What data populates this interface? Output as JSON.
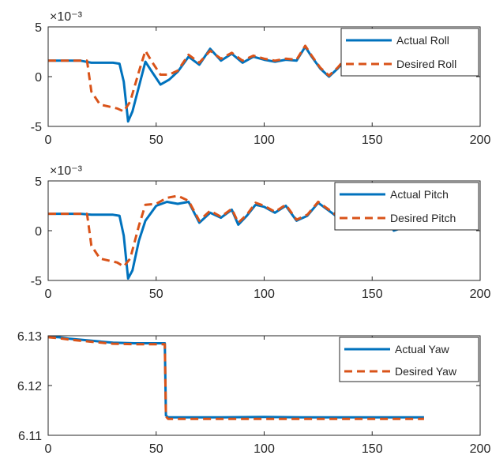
{
  "chart_data": [
    {
      "type": "line",
      "title": "",
      "xlabel": "",
      "ylabel": "",
      "y_exponent_label": "×10⁻³",
      "xlim": [
        0,
        200
      ],
      "ylim": [
        -5,
        5
      ],
      "xticks": [
        0,
        50,
        100,
        150,
        200
      ],
      "yticks": [
        -5,
        0,
        5
      ],
      "legend_position": "top-right",
      "grid": false,
      "series": [
        {
          "name": "Actual Roll",
          "color": "#0072BD",
          "style": "solid",
          "x": [
            0,
            5,
            10,
            15,
            20,
            25,
            30,
            33,
            35,
            37,
            39,
            42,
            45,
            48,
            52,
            56,
            60,
            65,
            70,
            75,
            80,
            85,
            90,
            95,
            100,
            105,
            110,
            115,
            119,
            122,
            126,
            130,
            134,
            138,
            142,
            146,
            150,
            155,
            160,
            165,
            170,
            174
          ],
          "y": [
            1.6,
            1.6,
            1.6,
            1.6,
            1.4,
            1.4,
            1.4,
            1.3,
            -0.5,
            -4.5,
            -3.5,
            -1.0,
            1.5,
            0.5,
            -0.8,
            -0.3,
            0.5,
            2.0,
            1.2,
            2.8,
            1.6,
            2.3,
            1.4,
            2.0,
            1.7,
            1.5,
            1.7,
            1.6,
            3.0,
            2.0,
            0.8,
            0.0,
            0.8,
            1.8,
            2.2,
            1.8,
            1.9,
            2.2,
            1.5,
            2.3,
            1.8,
            2.0
          ]
        },
        {
          "name": "Desired Roll",
          "color": "#D95319",
          "style": "dashed",
          "x": [
            0,
            5,
            10,
            15,
            18,
            20,
            24,
            28,
            32,
            35,
            38,
            42,
            45,
            48,
            52,
            56,
            60,
            65,
            70,
            75,
            80,
            85,
            90,
            95,
            100,
            105,
            110,
            115,
            119,
            122,
            126,
            130,
            134,
            138,
            142,
            146,
            150,
            155,
            160,
            165,
            170,
            174
          ],
          "y": [
            1.6,
            1.6,
            1.6,
            1.6,
            1.6,
            -1.5,
            -2.8,
            -3.0,
            -3.2,
            -3.5,
            -2.5,
            0.5,
            2.6,
            1.5,
            0.2,
            0.2,
            0.6,
            2.2,
            1.4,
            2.6,
            1.8,
            2.4,
            1.6,
            2.1,
            1.8,
            1.6,
            1.8,
            1.7,
            3.1,
            2.1,
            0.9,
            0.1,
            0.9,
            1.9,
            2.3,
            1.9,
            2.0,
            2.3,
            1.6,
            2.4,
            1.9,
            2.1
          ]
        }
      ]
    },
    {
      "type": "line",
      "title": "",
      "xlabel": "",
      "ylabel": "",
      "y_exponent_label": "×10⁻³",
      "xlim": [
        0,
        200
      ],
      "ylim": [
        -5,
        5
      ],
      "xticks": [
        0,
        50,
        100,
        150,
        200
      ],
      "yticks": [
        -5,
        0,
        5
      ],
      "legend_position": "top-right",
      "grid": false,
      "series": [
        {
          "name": "Actual Pitch",
          "color": "#0072BD",
          "style": "solid",
          "x": [
            0,
            5,
            10,
            15,
            20,
            25,
            30,
            33,
            35,
            37,
            39,
            42,
            45,
            50,
            55,
            60,
            65,
            70,
            75,
            80,
            85,
            88,
            92,
            96,
            100,
            105,
            110,
            115,
            120,
            125,
            130,
            135,
            140,
            145,
            148,
            152,
            156,
            160,
            164,
            168,
            172,
            174
          ],
          "y": [
            1.7,
            1.7,
            1.7,
            1.7,
            1.6,
            1.6,
            1.6,
            1.5,
            -0.5,
            -4.8,
            -4.0,
            -1.0,
            1.0,
            2.5,
            2.9,
            2.7,
            2.9,
            0.8,
            1.8,
            1.3,
            2.1,
            0.6,
            1.5,
            2.6,
            2.4,
            1.8,
            2.5,
            1.0,
            1.5,
            2.8,
            2.0,
            1.2,
            3.5,
            0.2,
            0.3,
            1.0,
            2.2,
            0.0,
            0.3,
            1.5,
            0.3,
            0.8
          ]
        },
        {
          "name": "Desired Pitch",
          "color": "#D95319",
          "style": "dashed",
          "x": [
            0,
            5,
            10,
            15,
            18,
            20,
            24,
            28,
            32,
            35,
            38,
            42,
            45,
            50,
            55,
            60,
            65,
            70,
            75,
            80,
            85,
            88,
            92,
            96,
            100,
            105,
            110,
            115,
            120,
            125,
            130,
            135,
            140,
            145,
            148,
            152,
            156,
            160,
            164,
            168,
            172,
            174
          ],
          "y": [
            1.7,
            1.7,
            1.7,
            1.7,
            1.7,
            -1.5,
            -2.8,
            -3.0,
            -3.2,
            -3.6,
            -2.8,
            0.5,
            2.6,
            2.7,
            3.3,
            3.5,
            3.0,
            1.0,
            2.0,
            1.4,
            2.2,
            0.8,
            1.6,
            2.8,
            2.5,
            1.9,
            2.6,
            1.1,
            1.6,
            2.9,
            2.1,
            1.3,
            3.6,
            0.5,
            0.6,
            1.2,
            2.4,
            0.3,
            0.5,
            1.7,
            0.6,
            1.0
          ]
        }
      ]
    },
    {
      "type": "line",
      "title": "",
      "xlabel": "",
      "ylabel": "",
      "xlim": [
        0,
        200
      ],
      "ylim": [
        6.11,
        6.13
      ],
      "xticks": [
        0,
        50,
        100,
        150,
        200
      ],
      "yticks": [
        6.11,
        6.12,
        6.13
      ],
      "legend_position": "top-right",
      "grid": false,
      "series": [
        {
          "name": "Actual Yaw",
          "color": "#0072BD",
          "style": "solid",
          "x": [
            0,
            5,
            10,
            20,
            30,
            40,
            50,
            54,
            54.5,
            55.5,
            60,
            80,
            100,
            120,
            140,
            160,
            174
          ],
          "y": [
            6.1298,
            6.1297,
            6.1294,
            6.129,
            6.1286,
            6.1285,
            6.1285,
            6.1285,
            6.114,
            6.1136,
            6.1136,
            6.1136,
            6.1137,
            6.1136,
            6.1136,
            6.1136,
            6.1136
          ]
        },
        {
          "name": "Desired Yaw",
          "color": "#D95319",
          "style": "dashed",
          "x": [
            0,
            5,
            10,
            20,
            30,
            40,
            50,
            54,
            54.5,
            55.5,
            60,
            80,
            100,
            120,
            140,
            160,
            174
          ],
          "y": [
            6.1297,
            6.1295,
            6.1292,
            6.1288,
            6.1284,
            6.1283,
            6.1283,
            6.1283,
            6.1138,
            6.1133,
            6.1133,
            6.1133,
            6.1133,
            6.1133,
            6.1133,
            6.1133,
            6.1133
          ]
        }
      ]
    }
  ]
}
